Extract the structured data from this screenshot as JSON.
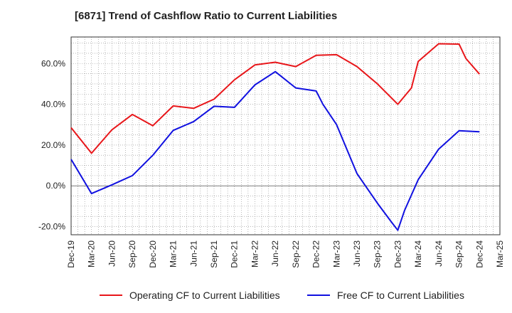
{
  "chart_data": {
    "type": "line",
    "title": "[6871]  Trend of Cashflow Ratio to Current Liabilities",
    "xlabel": "",
    "ylabel": "",
    "ylim": [
      -24,
      73
    ],
    "y_ticks": [
      -20,
      0,
      20,
      40,
      60
    ],
    "y_tick_labels": [
      "-20.0%",
      "0.0%",
      "20.0%",
      "40.0%",
      "60.0%"
    ],
    "x": [
      "Dec-19",
      "Mar-20",
      "Jun-20",
      "Sep-20",
      "Dec-20",
      "Mar-21",
      "Jun-21",
      "Sep-21",
      "Dec-21",
      "Mar-22",
      "Jun-22",
      "Sep-22",
      "Dec-22",
      "Mar-23",
      "Jun-23",
      "Sep-23",
      "Dec-23",
      "Mar-24",
      "Jun-24",
      "Sep-24",
      "Dec-24",
      "Mar-25"
    ],
    "grid": true,
    "legend_position": "bottom",
    "series": [
      {
        "name": "Operating CF to Current Liabilities",
        "color": "#e8161a",
        "x": [
          "Dec-19",
          "Mar-20",
          "Jun-20",
          "Sep-20",
          "Dec-20",
          "Mar-21",
          "Jun-21",
          "Sep-21",
          "Dec-21",
          "Mar-22",
          "Jun-22",
          "Sep-22",
          "Dec-22",
          "Mar-23",
          "Jun-23",
          "Sep-23",
          "Dec-23",
          "Feb-24",
          "Mar-24",
          "Jun-24",
          "Sep-24",
          "Oct-24",
          "Dec-24"
        ],
        "values": [
          28.5,
          16.0,
          27.5,
          35.0,
          29.5,
          39.2,
          38.0,
          42.5,
          52.0,
          59.3,
          60.6,
          58.5,
          64.0,
          64.3,
          58.5,
          50.0,
          40.0,
          48.0,
          61.0,
          69.7,
          69.5,
          62.5,
          54.8
        ]
      },
      {
        "name": "Free CF to Current Liabilities",
        "color": "#1010e0",
        "x": [
          "Dec-19",
          "Mar-20",
          "Jun-20",
          "Sep-20",
          "Dec-20",
          "Mar-21",
          "Jun-21",
          "Sep-21",
          "Dec-21",
          "Mar-22",
          "Jun-22",
          "Sep-22",
          "Dec-22",
          "Jan-23",
          "Mar-23",
          "Jun-23",
          "Sep-23",
          "Nov-23",
          "Dec-23",
          "Jan-24",
          "Mar-24",
          "Jun-24",
          "Sep-24",
          "Dec-24"
        ],
        "values": [
          13.0,
          -3.8,
          0.5,
          5.0,
          15.0,
          27.2,
          31.5,
          39.0,
          38.5,
          49.5,
          56.0,
          48.0,
          46.5,
          40.0,
          30.0,
          6.0,
          -8.5,
          -17.5,
          -21.8,
          -12.0,
          3.0,
          18.0,
          27.0,
          26.5
        ]
      }
    ]
  }
}
